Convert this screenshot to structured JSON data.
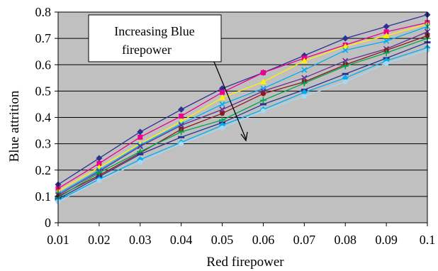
{
  "chart_data": {
    "type": "line",
    "xlabel": "Red firepower",
    "ylabel": "Blue attrition",
    "xlim": [
      0.01,
      0.1
    ],
    "ylim": [
      0,
      0.8
    ],
    "x_ticks": [
      "0.01",
      "0.02",
      "0.03",
      "0.04",
      "0.05",
      "0.06",
      "0.07",
      "0.08",
      "0.09",
      "0.1"
    ],
    "y_ticks": [
      "0",
      "0.1",
      "0.2",
      "0.3",
      "0.4",
      "0.5",
      "0.6",
      "0.7",
      "0.8"
    ],
    "grid": "horizontal",
    "plot_background": "#c0c0c0",
    "annotation": {
      "lines": [
        "Increasing Blue",
        "firepower"
      ],
      "arrow": "points down-right toward lower curves"
    },
    "x": [
      0.01,
      0.02,
      0.03,
      0.04,
      0.05,
      0.06,
      0.07,
      0.08,
      0.09,
      0.1
    ],
    "series": [
      {
        "color": "#2e3192",
        "marker": "diamond",
        "values": [
          0.145,
          0.245,
          0.345,
          0.43,
          0.51,
          0.57,
          0.635,
          0.7,
          0.745,
          0.79
        ]
      },
      {
        "color": "#ec008c",
        "marker": "square",
        "values": [
          0.13,
          0.225,
          0.325,
          0.405,
          0.495,
          0.57,
          0.625,
          0.675,
          0.725,
          0.76
        ]
      },
      {
        "color": "#fff200",
        "marker": "triangle",
        "values": [
          0.12,
          0.21,
          0.3,
          0.385,
          0.475,
          0.535,
          0.615,
          0.67,
          0.71,
          0.755
        ]
      },
      {
        "color": "#00aeef",
        "marker": "x",
        "values": [
          0.11,
          0.2,
          0.295,
          0.375,
          0.45,
          0.51,
          0.58,
          0.655,
          0.69,
          0.745
        ]
      },
      {
        "color": "#662d91",
        "marker": "x",
        "values": [
          0.105,
          0.195,
          0.29,
          0.37,
          0.43,
          0.5,
          0.55,
          0.615,
          0.66,
          0.725
        ]
      },
      {
        "color": "#8b1a1a",
        "marker": "circle",
        "values": [
          0.1,
          0.18,
          0.265,
          0.355,
          0.415,
          0.49,
          0.535,
          0.6,
          0.655,
          0.71
        ]
      },
      {
        "color": "#00a651",
        "marker": "plus",
        "values": [
          0.095,
          0.19,
          0.27,
          0.345,
          0.39,
          0.465,
          0.53,
          0.595,
          0.645,
          0.7
        ]
      },
      {
        "color": "#2e3192",
        "marker": "dash",
        "values": [
          0.09,
          0.175,
          0.26,
          0.325,
          0.38,
          0.45,
          0.505,
          0.565,
          0.625,
          0.685
        ]
      },
      {
        "color": "#00aeef",
        "marker": "diamond",
        "values": [
          0.085,
          0.165,
          0.24,
          0.305,
          0.37,
          0.43,
          0.495,
          0.55,
          0.615,
          0.665
        ]
      },
      {
        "color": "#a3d9f5",
        "marker": "circle",
        "values": [
          0.08,
          0.16,
          0.23,
          0.3,
          0.36,
          0.425,
          0.48,
          0.535,
          0.605,
          0.655
        ]
      }
    ]
  }
}
